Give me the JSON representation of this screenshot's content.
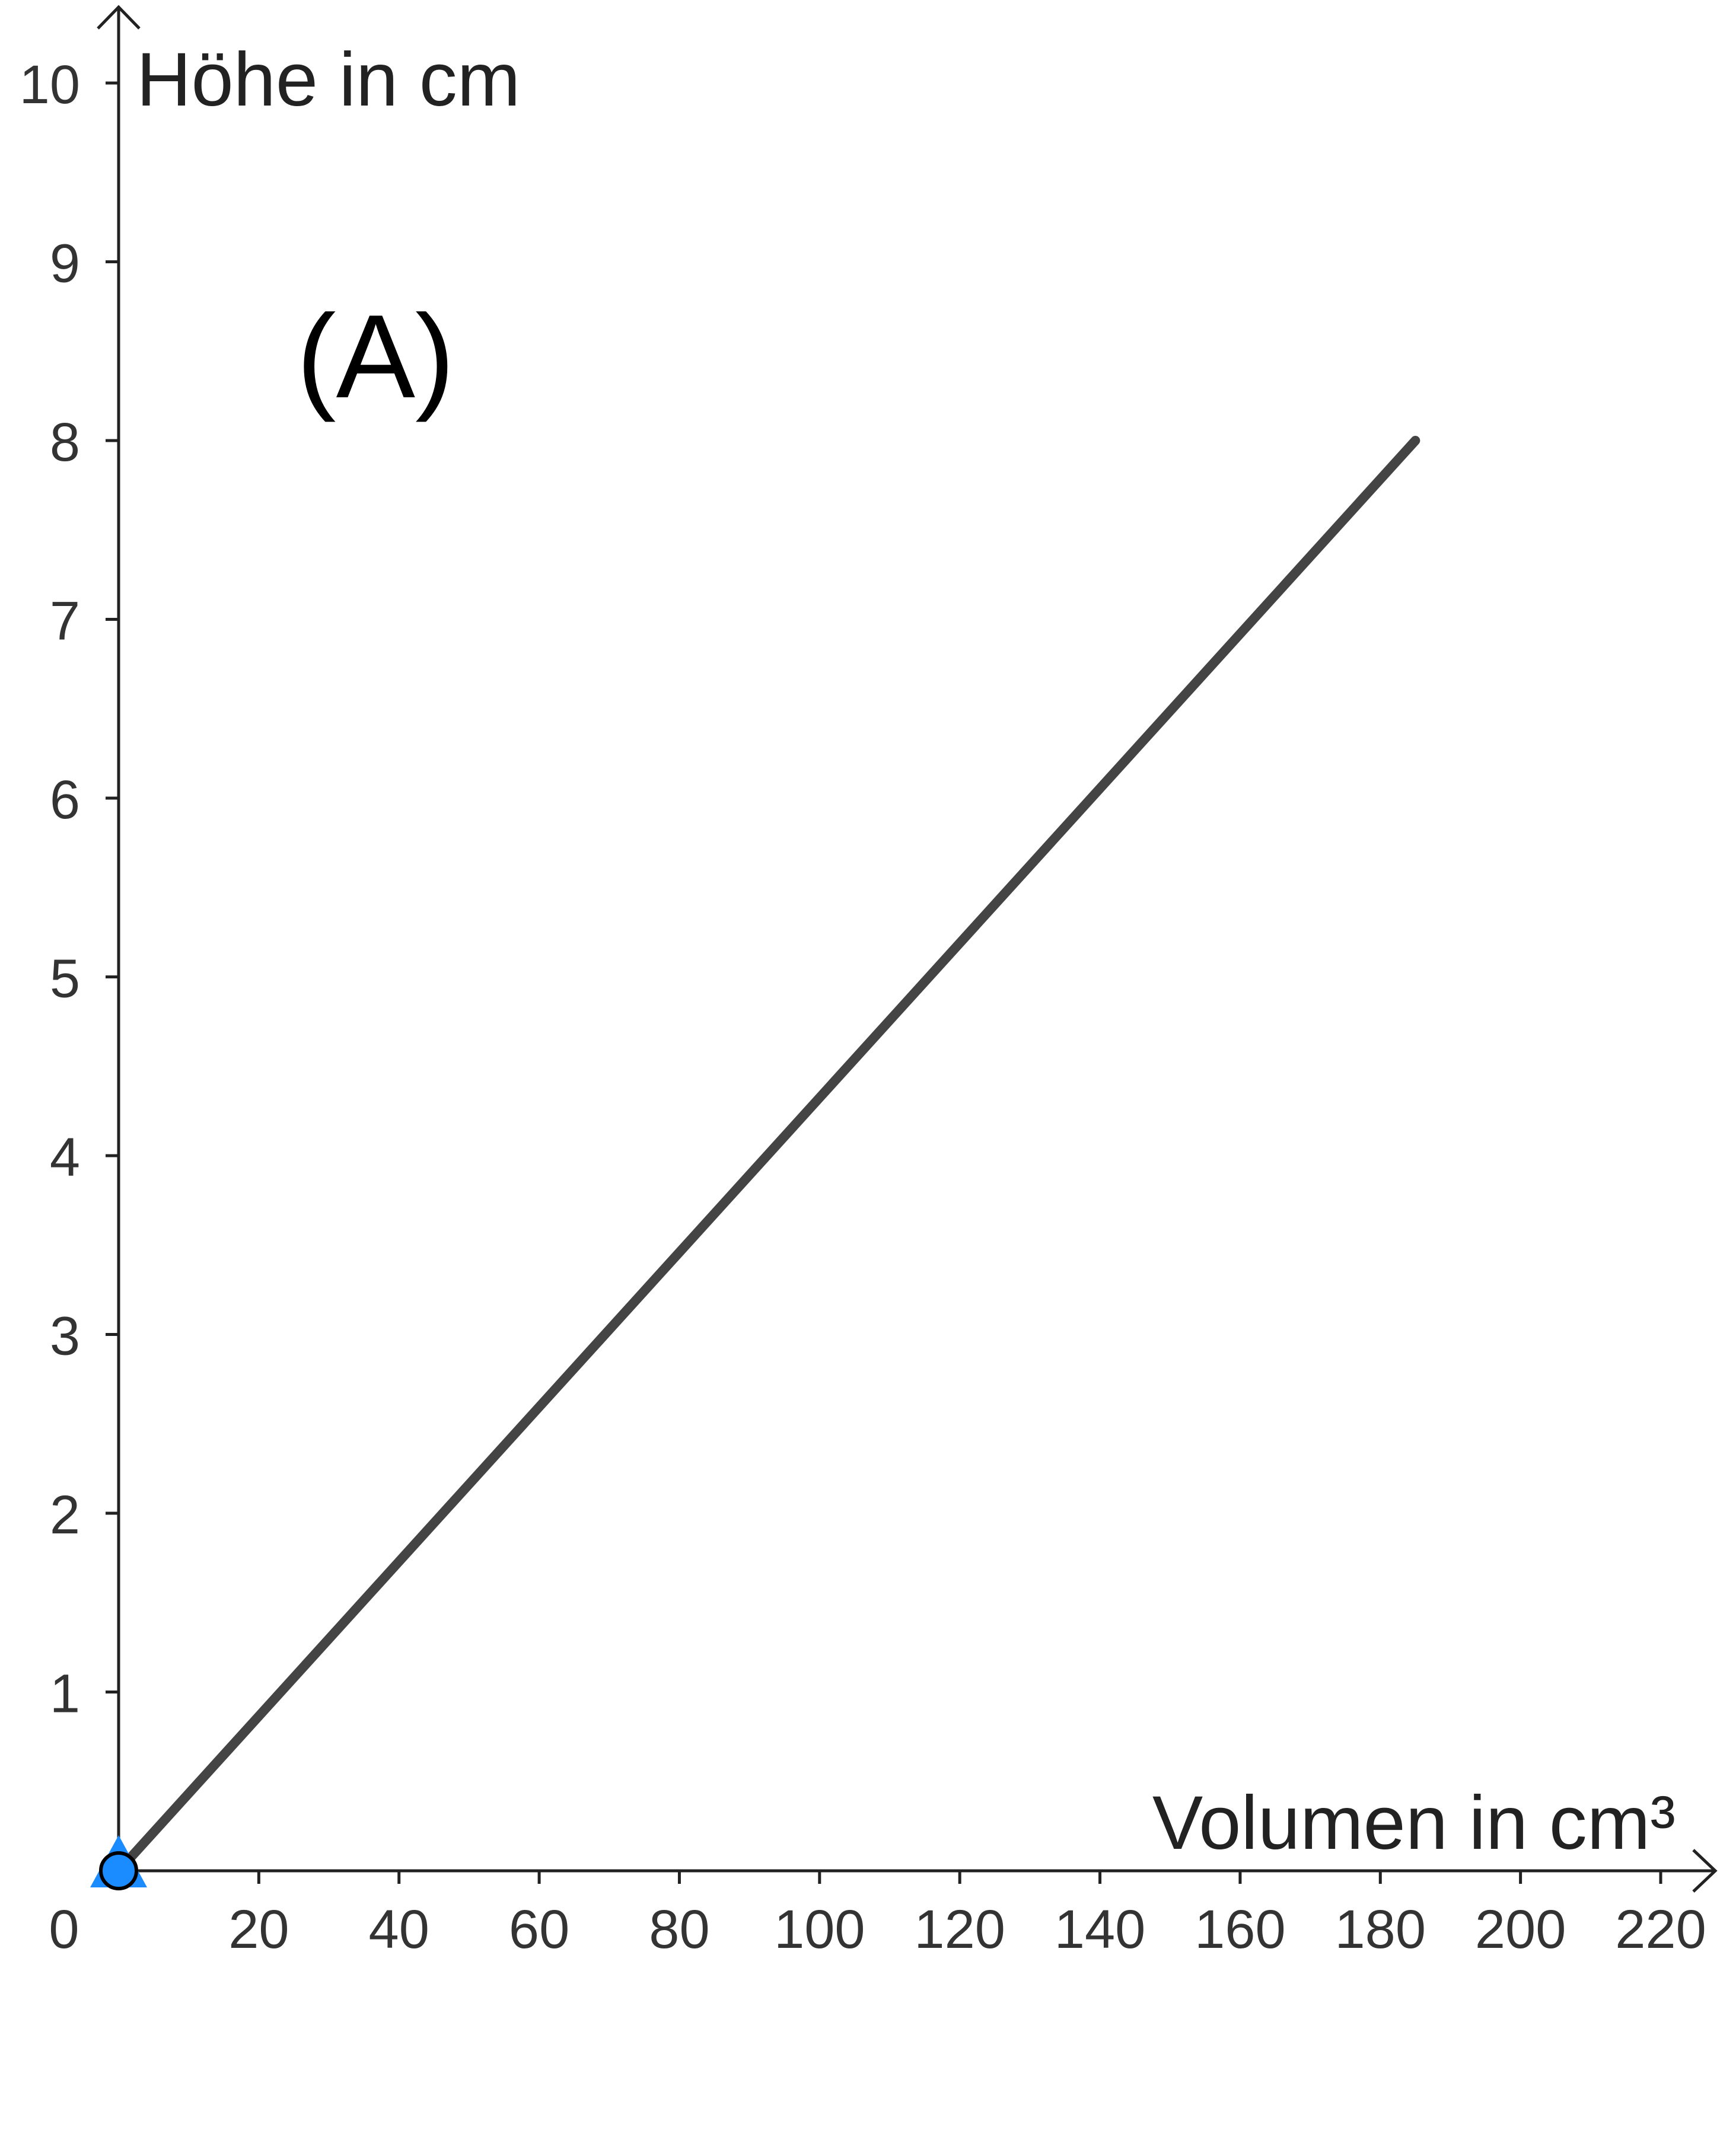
{
  "chart_data": {
    "type": "line",
    "panel_label": "(A)",
    "xlabel": "Volumen in cm³",
    "ylabel": "Höhe in cm",
    "xlim": [
      0,
      220
    ],
    "ylim": [
      0,
      10
    ],
    "x_ticks": [
      20,
      40,
      60,
      80,
      100,
      120,
      140,
      160,
      180,
      200,
      220
    ],
    "y_ticks": [
      1,
      2,
      3,
      4,
      5,
      6,
      7,
      8,
      9,
      10
    ],
    "origin_label": "0",
    "grid": false,
    "series": [
      {
        "color": "#444444",
        "x": [
          0,
          185
        ],
        "y": [
          0,
          8
        ]
      }
    ],
    "origin_point": {
      "x": 0,
      "y": 0,
      "color": "#1a8cff"
    }
  }
}
